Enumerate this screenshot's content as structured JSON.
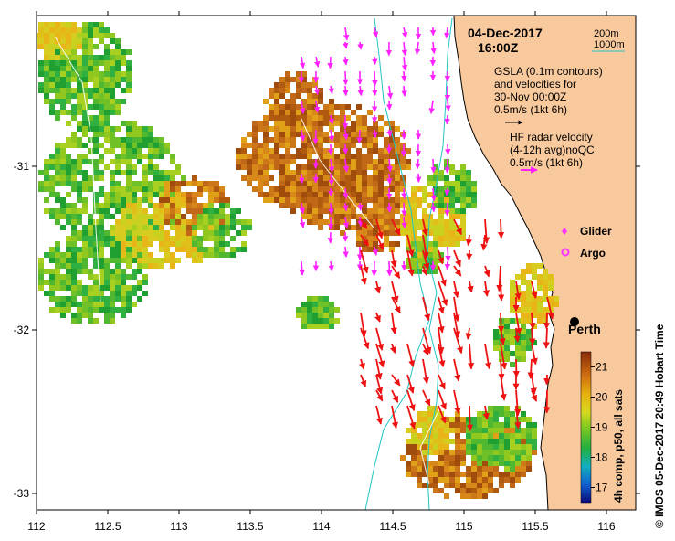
{
  "header": {
    "date": "04-Dec-2017",
    "time": "16:00Z"
  },
  "isobath_legend": {
    "items": [
      "200m",
      "1000m"
    ],
    "line_color": "#22c4c4"
  },
  "sla_legend": {
    "lines": [
      "GSLA (0.1m contours)",
      "and velocities for",
      "30-Nov 00:00Z",
      "0.5m/s (1kt 6h)"
    ],
    "arrow_color": "#000000"
  },
  "radar_legend": {
    "lines": [
      "HF radar velocity",
      "(4-12h avg)noQC",
      "0.5m/s (1kt 6h)"
    ],
    "arrow_color": "#ff33ff"
  },
  "markers": {
    "glider_label": "Glider",
    "argo_label": "Argo",
    "glider_color": "#ff33ff",
    "argo_color": "#ff33ff"
  },
  "city": {
    "name": "Perth"
  },
  "axes": {
    "x_ticks": [
      "112",
      "112.5",
      "113",
      "113.5",
      "114",
      "114.5",
      "115",
      "115.5",
      "116"
    ],
    "y_ticks": [
      "-31",
      "-32",
      "-33"
    ]
  },
  "colorbar": {
    "title": "4h comp, p50, all sats",
    "ticks": [
      "17",
      "18",
      "19",
      "20",
      "21"
    ],
    "range": [
      16.5,
      21.5
    ]
  },
  "credit": "© IMOS 05-Dec-2017 20:49 Hobart Time",
  "colors": {
    "land": "#f9c99e",
    "radar_arrows": "#ff22ff",
    "model_arrows": "#ee1111",
    "isobath": "#22c4c4"
  }
}
